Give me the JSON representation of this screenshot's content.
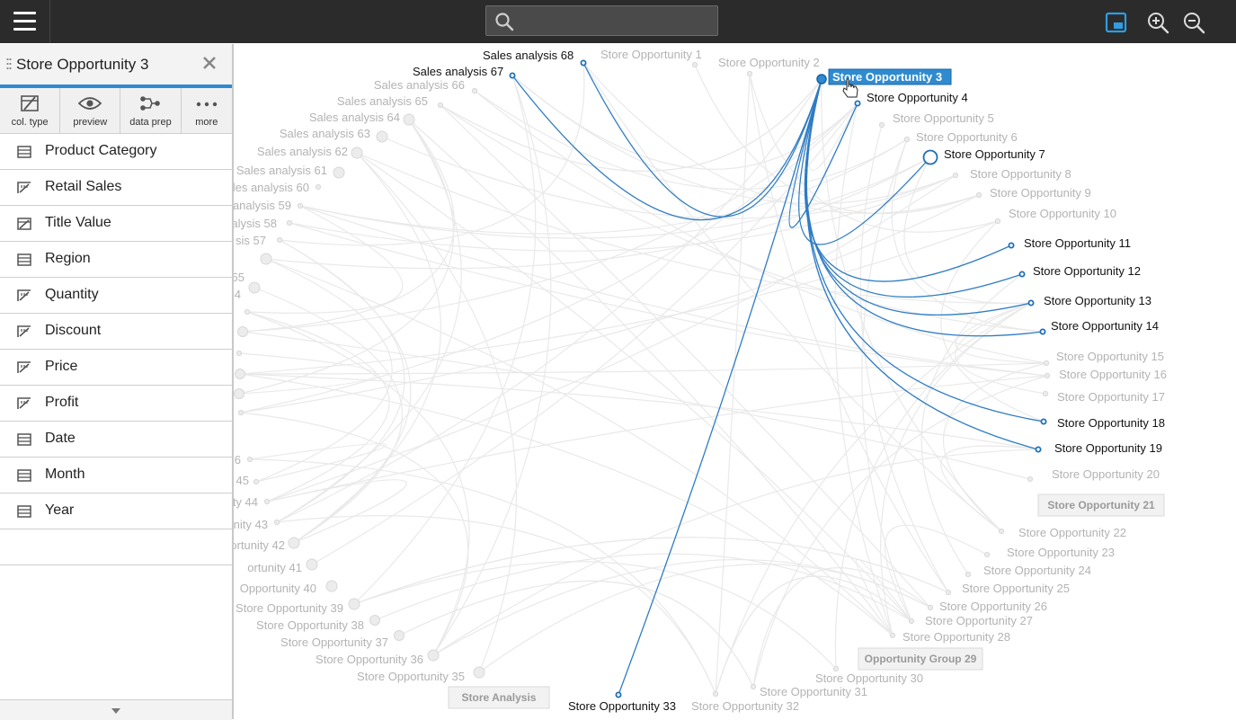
{
  "topbar": {
    "search": {
      "placeholder": "",
      "value": ""
    },
    "icons": [
      "menu-icon",
      "search-icon",
      "window-icon",
      "zoom-in-icon",
      "zoom-out-icon"
    ],
    "accent_color": "#2f8bd0"
  },
  "panel": {
    "title": "Store Opportunity 3",
    "toolbar": [
      {
        "label": "col. type",
        "icon": "column-type-icon"
      },
      {
        "label": "preview",
        "icon": "eye-icon"
      },
      {
        "label": "data prep",
        "icon": "data-prep-icon"
      },
      {
        "label": "more",
        "icon": "more-icon"
      }
    ],
    "fields": [
      {
        "name": "Product Category",
        "kind": "dimension"
      },
      {
        "name": "Retail Sales",
        "kind": "measure"
      },
      {
        "name": "Title Value",
        "kind": "measure-alt"
      },
      {
        "name": "Region",
        "kind": "dimension"
      },
      {
        "name": "Quantity",
        "kind": "measure"
      },
      {
        "name": "Discount",
        "kind": "measure"
      },
      {
        "name": "Price",
        "kind": "measure"
      },
      {
        "name": "Profit",
        "kind": "measure"
      },
      {
        "name": "Date",
        "kind": "dimension"
      },
      {
        "name": "Month",
        "kind": "dimension"
      },
      {
        "name": "Year",
        "kind": "dimension"
      }
    ]
  },
  "graph": {
    "link_color": "#2f7cc4",
    "selected_node": "Store Opportunity 3",
    "nodes": [
      {
        "label": "Sales analysis 68",
        "state": "linked"
      },
      {
        "label": "Sales analysis 67",
        "state": "linked"
      },
      {
        "label": "Store Opportunity 1",
        "state": "faded"
      },
      {
        "label": "Store Opportunity 2",
        "state": "faded"
      },
      {
        "label": "Store Opportunity 3",
        "state": "selected"
      },
      {
        "label": "Store Opportunity 4",
        "state": "linked"
      },
      {
        "label": "Store Opportunity 5",
        "state": "faded"
      },
      {
        "label": "Store Opportunity 6",
        "state": "faded"
      },
      {
        "label": "Store Opportunity 7",
        "state": "linked"
      },
      {
        "label": "Store Opportunity 8",
        "state": "faded"
      },
      {
        "label": "Store Opportunity 9",
        "state": "faded"
      },
      {
        "label": "Store Opportunity 10",
        "state": "faded"
      },
      {
        "label": "Store Opportunity 11",
        "state": "linked"
      },
      {
        "label": "Store Opportunity 12",
        "state": "linked"
      },
      {
        "label": "Store Opportunity 13",
        "state": "linked"
      },
      {
        "label": "Store Opportunity 14",
        "state": "linked"
      },
      {
        "label": "Store Opportunity 15",
        "state": "faded"
      },
      {
        "label": "Store Opportunity 16",
        "state": "faded"
      },
      {
        "label": "Store Opportunity 17",
        "state": "faded"
      },
      {
        "label": "Store Opportunity 18",
        "state": "linked"
      },
      {
        "label": "Store Opportunity 19",
        "state": "linked"
      },
      {
        "label": "Store Opportunity 20",
        "state": "faded"
      },
      {
        "label": "Store Opportunity 22",
        "state": "faded"
      },
      {
        "label": "Store Opportunity 23",
        "state": "faded"
      },
      {
        "label": "Store Opportunity 24",
        "state": "faded"
      },
      {
        "label": "Store Opportunity 25",
        "state": "faded"
      },
      {
        "label": "Store Opportunity 26",
        "state": "faded"
      },
      {
        "label": "Store Opportunity 27",
        "state": "faded"
      },
      {
        "label": "Store Opportunity 28",
        "state": "faded"
      },
      {
        "label": "Store Opportunity 30",
        "state": "faded"
      },
      {
        "label": "Store Opportunity 31",
        "state": "faded"
      },
      {
        "label": "Store Opportunity 32",
        "state": "faded"
      },
      {
        "label": "Store Opportunity 33",
        "state": "linked"
      },
      {
        "label": "Store Opportunity 35",
        "state": "faded"
      },
      {
        "label": "Store Opportunity 36",
        "state": "faded"
      },
      {
        "label": "Store Opportunity 37",
        "state": "faded"
      },
      {
        "label": "Store Opportunity 38",
        "state": "faded"
      },
      {
        "label": "Store Opportunity 39",
        "state": "faded"
      },
      {
        "label": "Opportunity 40",
        "state": "faded"
      },
      {
        "label": "ortunity 41",
        "state": "faded"
      },
      {
        "label": "ortunity 42",
        "state": "faded"
      },
      {
        "label": "unity 43",
        "state": "faded"
      },
      {
        "label": "ty 44",
        "state": "faded"
      },
      {
        "label": "45",
        "state": "faded"
      },
      {
        "label": "6",
        "state": "faded"
      },
      {
        "label": "4",
        "state": "faded"
      },
      {
        "label": "55",
        "state": "faded"
      },
      {
        "label": "sis 57",
        "state": "faded"
      },
      {
        "label": "nalysis 58",
        "state": "faded"
      },
      {
        "label": "analysis 59",
        "state": "faded"
      },
      {
        "label": "les analysis 60",
        "state": "faded"
      },
      {
        "label": "Sales analysis 61",
        "state": "faded"
      },
      {
        "label": "Sales analysis 62",
        "state": "faded"
      },
      {
        "label": "Sales analysis 63",
        "state": "faded"
      },
      {
        "label": "Sales analysis 64",
        "state": "faded"
      },
      {
        "label": "Sales analysis 65",
        "state": "faded"
      },
      {
        "label": "Sales analysis 66",
        "state": "faded"
      }
    ],
    "groups": [
      "Store Opportunity 21",
      "Opportunity Group 29",
      "Store Analysis"
    ]
  }
}
